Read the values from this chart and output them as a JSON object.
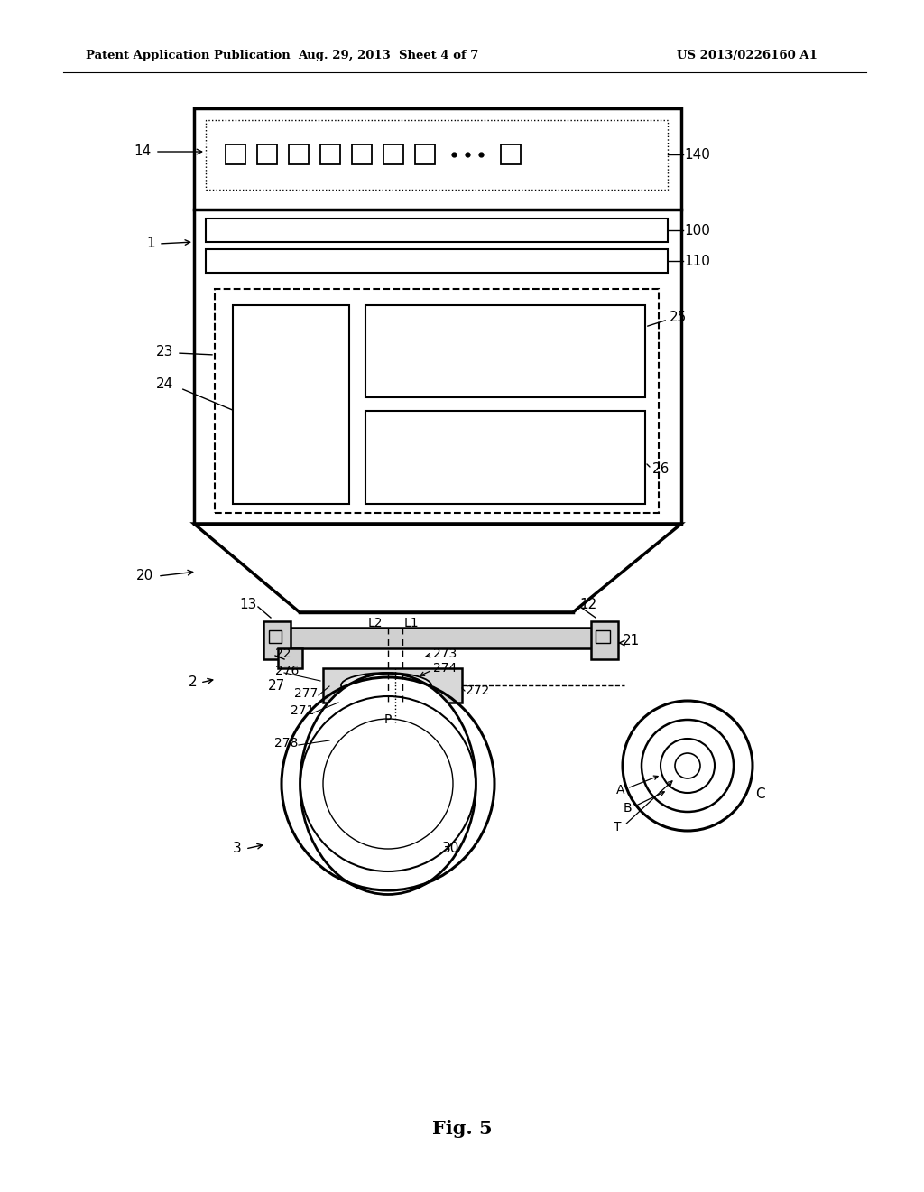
{
  "bg_color": "#ffffff",
  "text_color": "#000000",
  "header_left": "Patent Application Publication",
  "header_mid": "Aug. 29, 2013  Sheet 4 of 7",
  "header_right": "US 2013/0226160 A1",
  "figure_label": "Fig. 5",
  "line_color": "#000000",
  "lw_thick": 2.5,
  "lw_med": 1.8,
  "lw_thin": 1.2
}
